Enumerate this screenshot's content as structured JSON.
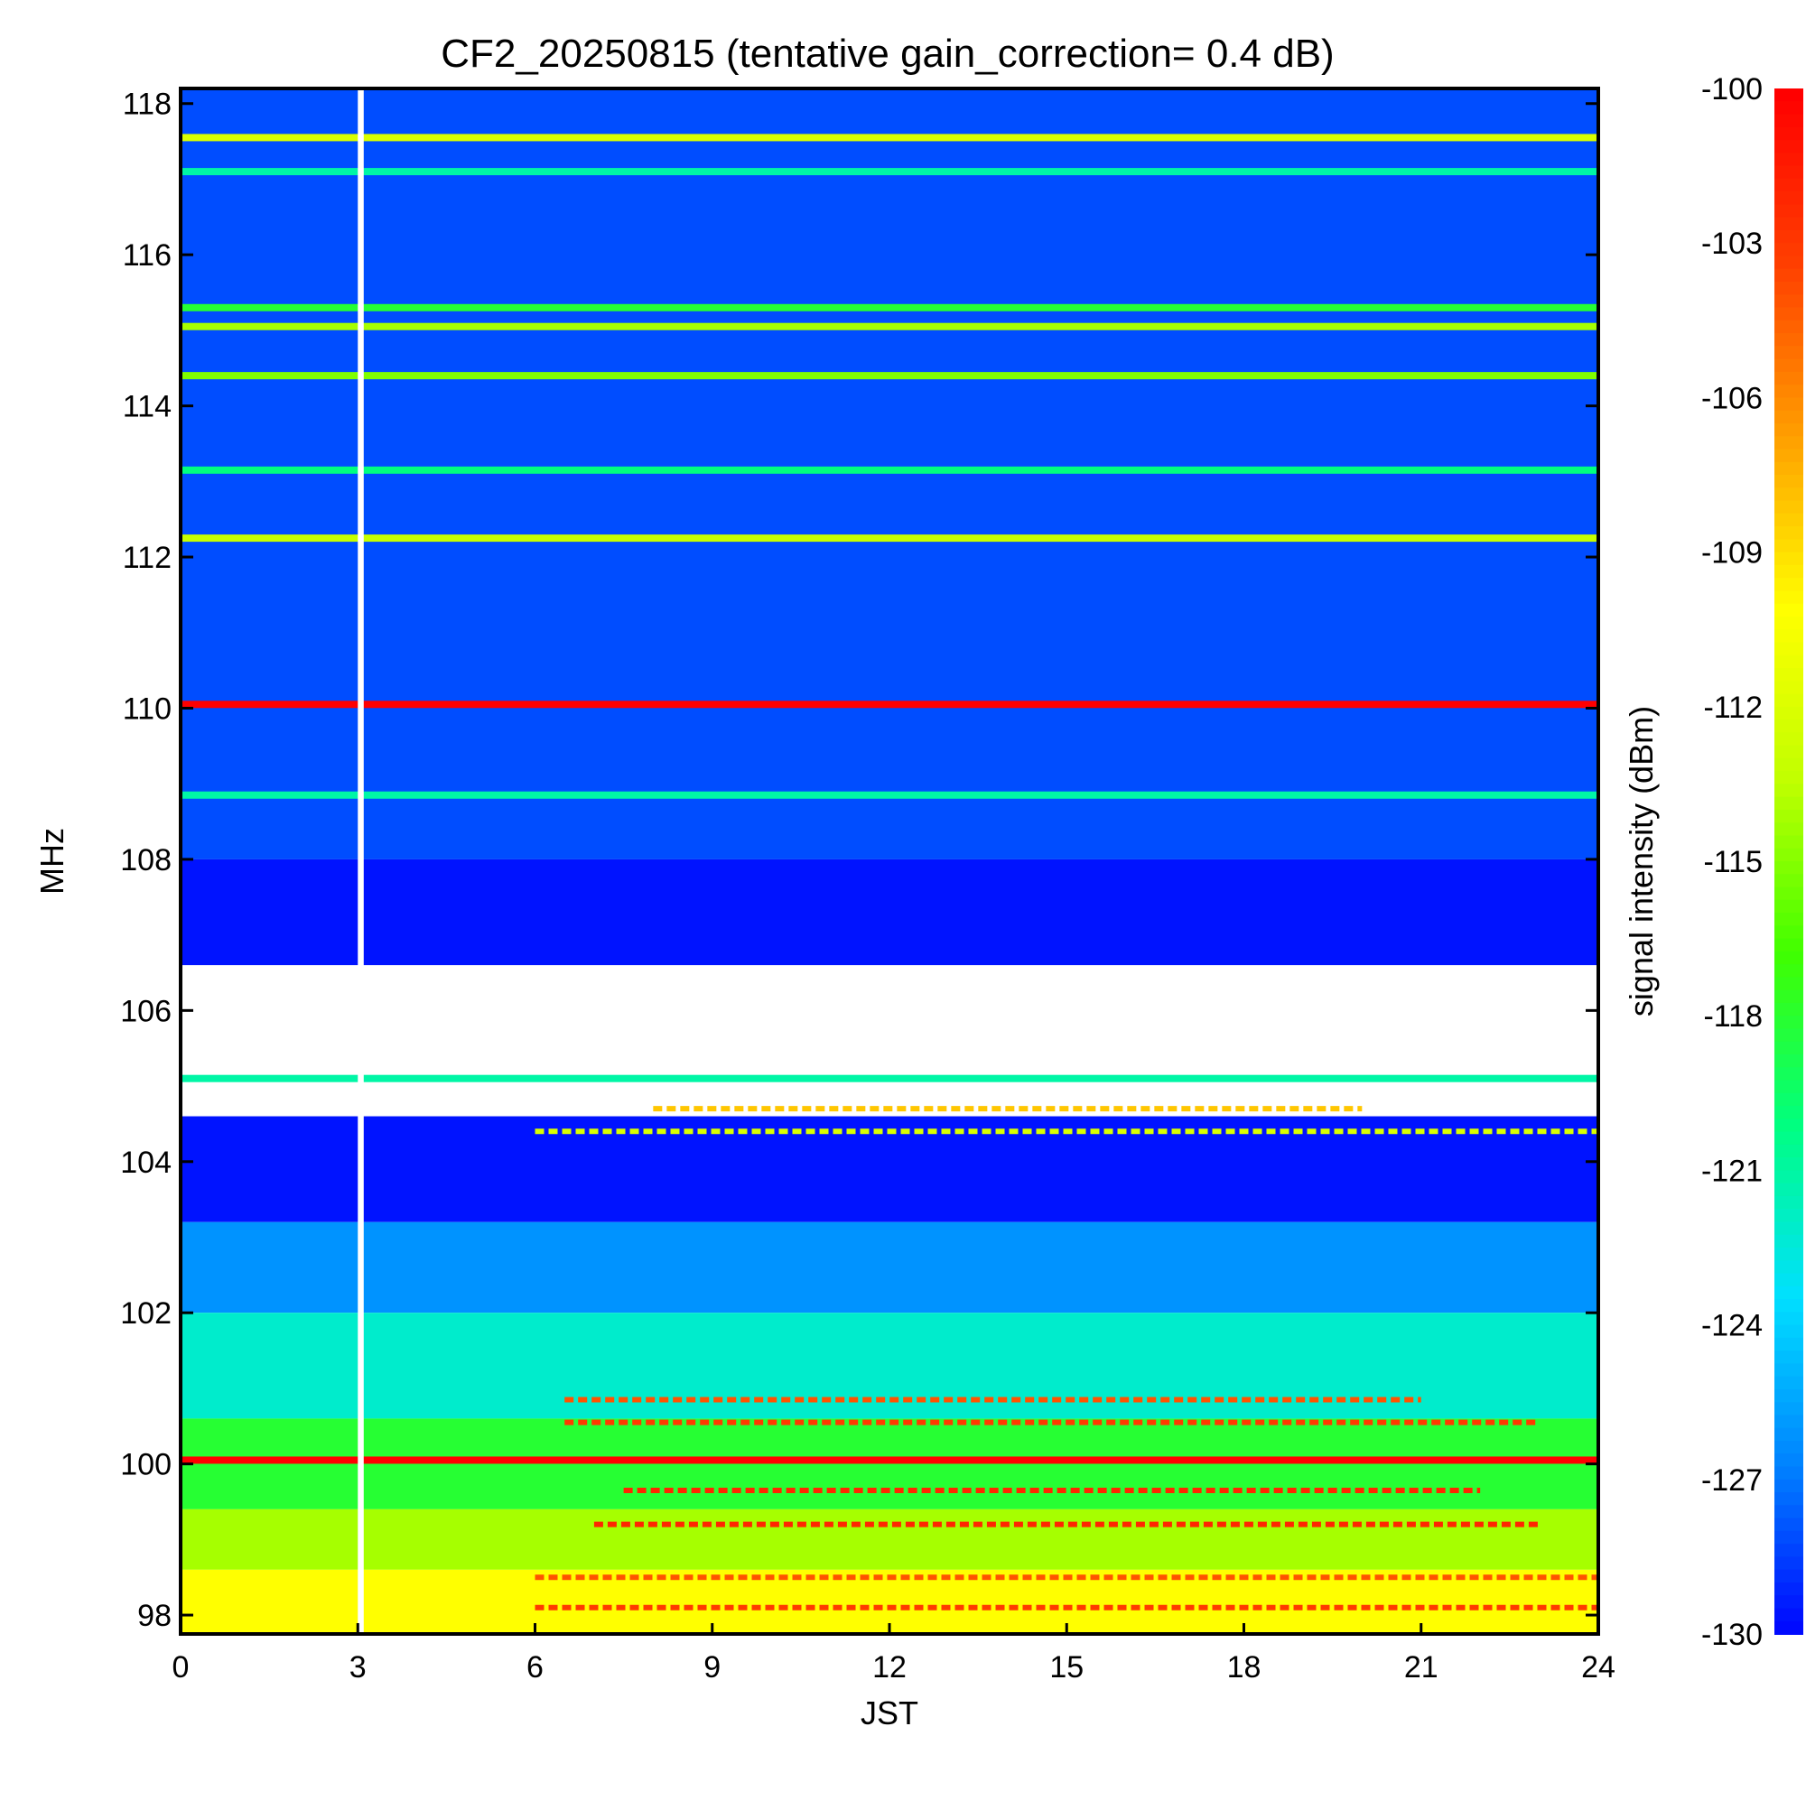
{
  "chart_data": {
    "type": "heatmap",
    "title": "CF2_20250815 (tentative gain_correction=  0.4 dB)",
    "xlabel": "JST",
    "ylabel": "MHz",
    "colorbar_label": "signal intensity (dBm)",
    "xlim": [
      0,
      24
    ],
    "ylim": [
      97.75,
      118.2
    ],
    "x_ticks": [
      0,
      3,
      6,
      9,
      12,
      15,
      18,
      21,
      24
    ],
    "x_tick_labels": [
      "0",
      "3",
      "6",
      "9",
      "12",
      "15",
      "18",
      "21",
      "24"
    ],
    "y_ticks": [
      98,
      100,
      102,
      104,
      106,
      108,
      110,
      112,
      114,
      116,
      118
    ],
    "y_tick_labels": [
      "98",
      "100",
      "102",
      "104",
      "106",
      "108",
      "110",
      "112",
      "114",
      "116",
      "118"
    ],
    "color_range": [
      -130,
      -100
    ],
    "colorbar_ticks": [
      -100,
      -103,
      -106,
      -109,
      -112,
      -115,
      -118,
      -121,
      -124,
      -127,
      -130
    ],
    "colorbar_tick_labels": [
      "-100",
      "-103",
      "-106",
      "-109",
      "-112",
      "-115",
      "-118",
      "-121",
      "-124",
      "-127",
      "-130"
    ],
    "colormap": [
      "#0000ff",
      "#0080ff",
      "#00e0ff",
      "#00ff80",
      "#40ff00",
      "#c0ff00",
      "#ffff00",
      "#ffa000",
      "#ff4000",
      "#ff0000"
    ],
    "data_gap": {
      "x_start": 3.0,
      "x_end": 3.1
    },
    "noise_floor_bands": [
      {
        "f_min": 108.0,
        "f_max": 118.2,
        "dbm": -128
      },
      {
        "f_min": 103.2,
        "f_max": 108.0,
        "dbm": -129.5
      },
      {
        "f_min": 102.0,
        "f_max": 103.2,
        "dbm": -126
      },
      {
        "f_min": 100.6,
        "f_max": 102.0,
        "dbm": -122
      },
      {
        "f_min": 99.4,
        "f_max": 100.6,
        "dbm": -118
      },
      {
        "f_min": 98.6,
        "f_max": 99.4,
        "dbm": -114
      },
      {
        "f_min": 97.75,
        "f_max": 98.6,
        "dbm": -110
      }
    ],
    "blank_bands": [
      {
        "f_min": 104.6,
        "f_max": 106.6
      }
    ],
    "continuous_signals": [
      {
        "freq_mhz": 117.55,
        "dbm": -112,
        "x_start": 0,
        "x_end": 24
      },
      {
        "freq_mhz": 117.1,
        "dbm": -121,
        "x_start": 0,
        "x_end": 24
      },
      {
        "freq_mhz": 115.3,
        "dbm": -118,
        "x_start": 0,
        "x_end": 24
      },
      {
        "freq_mhz": 115.05,
        "dbm": -114,
        "x_start": 0,
        "x_end": 24
      },
      {
        "freq_mhz": 114.4,
        "dbm": -115,
        "x_start": 0,
        "x_end": 24
      },
      {
        "freq_mhz": 113.15,
        "dbm": -120,
        "x_start": 0,
        "x_end": 24
      },
      {
        "freq_mhz": 112.25,
        "dbm": -113,
        "x_start": 0,
        "x_end": 24
      },
      {
        "freq_mhz": 110.05,
        "dbm": -100,
        "x_start": 0,
        "x_end": 24
      },
      {
        "freq_mhz": 108.85,
        "dbm": -121,
        "x_start": 0,
        "x_end": 24
      },
      {
        "freq_mhz": 105.1,
        "dbm": -121,
        "x_start": 0,
        "x_end": 24
      },
      {
        "freq_mhz": 100.05,
        "dbm": -100,
        "x_start": 0,
        "x_end": 24
      }
    ],
    "daytime_activity": [
      {
        "freq_mhz": 99.65,
        "dbm": -102,
        "x_start": 7.5,
        "x_end": 22
      },
      {
        "freq_mhz": 99.2,
        "dbm": -102,
        "x_start": 7.0,
        "x_end": 23
      },
      {
        "freq_mhz": 100.55,
        "dbm": -103,
        "x_start": 6.5,
        "x_end": 23
      },
      {
        "freq_mhz": 100.85,
        "dbm": -104,
        "x_start": 6.5,
        "x_end": 21
      },
      {
        "freq_mhz": 98.5,
        "dbm": -104,
        "x_start": 6.0,
        "x_end": 24
      },
      {
        "freq_mhz": 98.1,
        "dbm": -103,
        "x_start": 6.0,
        "x_end": 24
      },
      {
        "freq_mhz": 104.7,
        "dbm": -108,
        "x_start": 8.0,
        "x_end": 20
      },
      {
        "freq_mhz": 104.4,
        "dbm": -112,
        "x_start": 6.0,
        "x_end": 24
      }
    ]
  }
}
